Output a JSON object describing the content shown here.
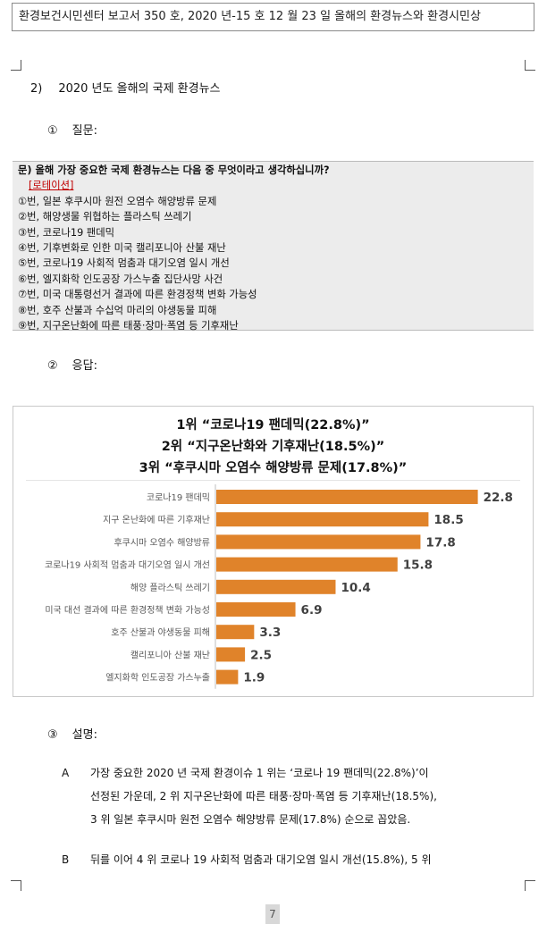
{
  "header": {
    "text": "환경보건시민센터 보고서 350 호, 2020 년-15 호 12 월 23 일 올해의 환경뉴스와 환경시민상"
  },
  "section": {
    "number": "2)",
    "title": "2020 년도 올해의 국제 환경뉴스"
  },
  "question_heading": {
    "number": "①",
    "label": "질문:"
  },
  "question_box": {
    "question": "문) 올해 가장 중요한 국제 환경뉴스는 다음 중 무엇이라고 생각하십니까?",
    "rotation": "[로테이션]",
    "options": [
      "①번, 일본 후쿠시마 원전 오염수 해양방류 문제",
      "②번, 해양생물 위협하는 플라스틱 쓰레기",
      "③번, 코로나19 팬데믹",
      "④번, 기후변화로 인한 미국 캘리포니아 산불 재난",
      "⑤번, 코로나19 사회적 멈춤과 대기오염 일시 개선",
      "⑥번, 엘지화학 인도공장 가스누출 집단사망 사건",
      "⑦번, 미국 대통령선거 결과에 따른 환경정책 변화 가능성",
      "⑧번, 호주 산불과 수십억 마리의 야생동물 피해",
      "⑨번, 지구온난화에 따른 태풍·장마·폭염 등 기후재난"
    ]
  },
  "response_heading": {
    "number": "②",
    "label": "응답:"
  },
  "chart_data": {
    "type": "bar",
    "orientation": "horizontal",
    "title_lines": [
      "1위 “코로나19 팬데믹(22.8%)”",
      "2위 “지구온난화와 기후재난(18.5%)”",
      "3위 “후쿠시마 오염수 해양방류 문제(17.8%)”"
    ],
    "categories": [
      "코로나19 팬데믹",
      "지구 온난화에 따른 기후재난",
      "후쿠시마 오염수 해양방류",
      "코로나19 사회적 멈춤과 대기오염 일시 개선",
      "해양 플라스틱 쓰레기",
      "미국 대선 결과에 따른 환경정책 변화 가능성",
      "호주 산불과 야생동물 피해",
      "캘리포니아 산불 재난",
      "엘지화학 인도공장 가스누출"
    ],
    "values": [
      22.8,
      18.5,
      17.8,
      15.8,
      10.4,
      6.9,
      3.3,
      2.5,
      1.9
    ],
    "value_labels": [
      "22.8",
      "18.5",
      "17.8",
      "15.8",
      "10.4",
      "6.9",
      "3.3",
      "2.5",
      "1.9"
    ],
    "xlim": [
      0,
      24
    ],
    "bar_color": "#e0832a",
    "grid": false,
    "legend": "none"
  },
  "explanation_heading": {
    "number": "③",
    "label": "설명:"
  },
  "paragraphs": [
    {
      "label": "A",
      "lines": [
        "가장 중요한 2020 년 국제 환경이슈 1 위는 ‘코로나 19 팬데믹(22.8%)’이",
        "선정된 가운데, 2 위 지구온난화에 따른 태풍·장마·폭염 등 기후재난(18.5%),",
        "3 위 일본 후쿠시마 원전 오염수 해양방류 문제(17.8%) 순으로 꼽았음."
      ]
    },
    {
      "label": "B",
      "lines": [
        "뒤를 이어 4 위 코로나 19 사회적 멈춤과 대기오염 일시 개선(15.8%), 5 위"
      ]
    }
  ],
  "page_number": "7"
}
